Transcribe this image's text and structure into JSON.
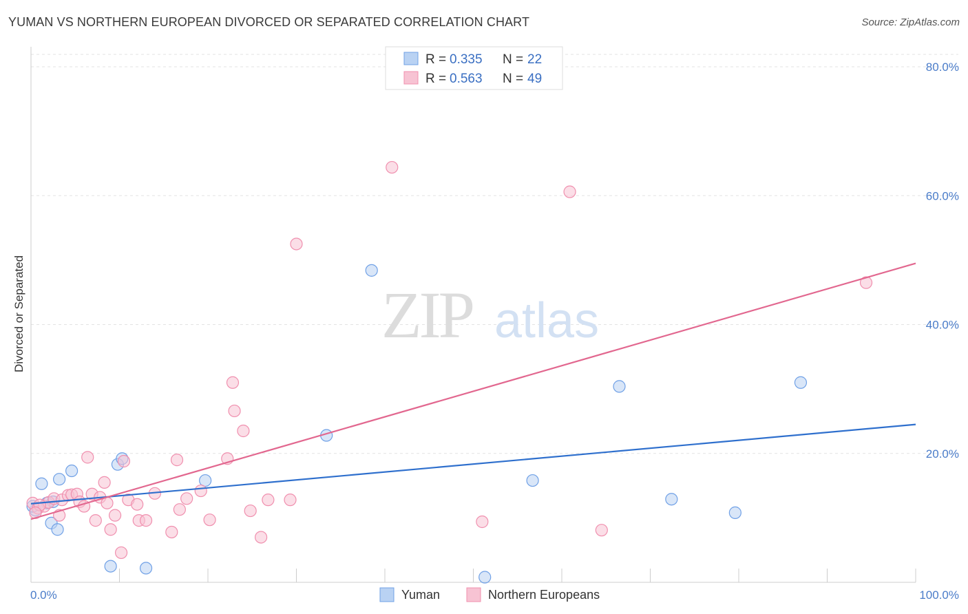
{
  "header": {
    "title": "YUMAN VS NORTHERN EUROPEAN DIVORCED OR SEPARATED CORRELATION CHART",
    "source": "Source: ZipAtlas.com"
  },
  "watermark": {
    "zip": "ZIP",
    "atlas": "atlas"
  },
  "legend": {
    "r_label": "R =",
    "n_label": "N =",
    "rows": [
      {
        "r": "0.335",
        "n": "22",
        "color": "#6fa0e6"
      },
      {
        "r": "0.563",
        "n": "49",
        "color": "#f08fae"
      }
    ]
  },
  "chart_data": {
    "type": "scatter",
    "title": "YUMAN VS NORTHERN EUROPEAN DIVORCED OR SEPARATED CORRELATION CHART",
    "xlabel": "",
    "ylabel": "Divorced or Separated",
    "xlim": [
      0,
      100
    ],
    "ylim": [
      0,
      80
    ],
    "x_tick_labels": [
      {
        "value": 0,
        "label": "0.0%"
      },
      {
        "value": 100,
        "label": "100.0%"
      }
    ],
    "y_tick_labels": [
      {
        "value": 20,
        "label": "20.0%"
      },
      {
        "value": 40,
        "label": "40.0%"
      },
      {
        "value": 60,
        "label": "60.0%"
      },
      {
        "value": 80,
        "label": "80.0%"
      }
    ],
    "series": [
      {
        "name": "Yuman",
        "color": "#6fa0e6",
        "fill": "#b9d2f3",
        "line_color": "#2e6fcd",
        "trend": {
          "x0": 0,
          "y0": 12.2,
          "x1": 100,
          "y1": 24.5
        },
        "points": [
          [
            0.5,
            11.2
          ],
          [
            1.2,
            15.3
          ],
          [
            1.8,
            12.3
          ],
          [
            2.5,
            12.5
          ],
          [
            2.3,
            9.2
          ],
          [
            3.0,
            8.2
          ],
          [
            3.2,
            16.0
          ],
          [
            4.6,
            17.3
          ],
          [
            9.0,
            2.5
          ],
          [
            9.8,
            18.3
          ],
          [
            10.3,
            19.2
          ],
          [
            13.0,
            2.2
          ],
          [
            19.7,
            15.8
          ],
          [
            33.4,
            22.8
          ],
          [
            38.5,
            48.4
          ],
          [
            51.3,
            0.8
          ],
          [
            56.7,
            15.8
          ],
          [
            66.5,
            30.4
          ],
          [
            72.4,
            12.9
          ],
          [
            79.6,
            10.8
          ],
          [
            87.0,
            31.0
          ],
          [
            0.2,
            11.8
          ]
        ]
      },
      {
        "name": "Northern Europeans",
        "color": "#f08fae",
        "fill": "#f7c3d3",
        "line_color": "#e2678f",
        "trend": {
          "x0": 0,
          "y0": 9.8,
          "x1": 100,
          "y1": 49.5
        },
        "points": [
          [
            0.2,
            12.3
          ],
          [
            0.8,
            11.5
          ],
          [
            1.5,
            11.8
          ],
          [
            2.0,
            12.4
          ],
          [
            2.6,
            13.0
          ],
          [
            3.2,
            10.4
          ],
          [
            3.5,
            12.8
          ],
          [
            4.2,
            13.5
          ],
          [
            4.6,
            13.6
          ],
          [
            5.2,
            13.7
          ],
          [
            5.5,
            12.5
          ],
          [
            6.0,
            11.8
          ],
          [
            6.4,
            19.4
          ],
          [
            6.9,
            13.7
          ],
          [
            7.3,
            9.6
          ],
          [
            7.8,
            13.2
          ],
          [
            8.3,
            15.5
          ],
          [
            8.6,
            12.3
          ],
          [
            9.0,
            8.2
          ],
          [
            9.5,
            10.4
          ],
          [
            10.2,
            4.6
          ],
          [
            10.5,
            18.8
          ],
          [
            11.0,
            12.8
          ],
          [
            12.0,
            12.1
          ],
          [
            12.2,
            9.6
          ],
          [
            13.0,
            9.6
          ],
          [
            14.0,
            13.8
          ],
          [
            15.9,
            7.8
          ],
          [
            16.5,
            19.0
          ],
          [
            16.8,
            11.3
          ],
          [
            17.6,
            13.0
          ],
          [
            19.2,
            14.2
          ],
          [
            20.2,
            9.7
          ],
          [
            22.2,
            19.2
          ],
          [
            22.8,
            31.0
          ],
          [
            23.0,
            26.6
          ],
          [
            24.0,
            23.5
          ],
          [
            24.8,
            11.1
          ],
          [
            26.0,
            7.0
          ],
          [
            26.8,
            12.8
          ],
          [
            29.3,
            12.8
          ],
          [
            30.0,
            52.5
          ],
          [
            40.8,
            64.4
          ],
          [
            51.0,
            9.4
          ],
          [
            60.9,
            60.6
          ],
          [
            64.5,
            8.1
          ],
          [
            94.4,
            46.5
          ],
          [
            1.0,
            12.0
          ],
          [
            0.5,
            10.8
          ]
        ]
      }
    ],
    "grid": true,
    "legend_position": "top-center"
  }
}
